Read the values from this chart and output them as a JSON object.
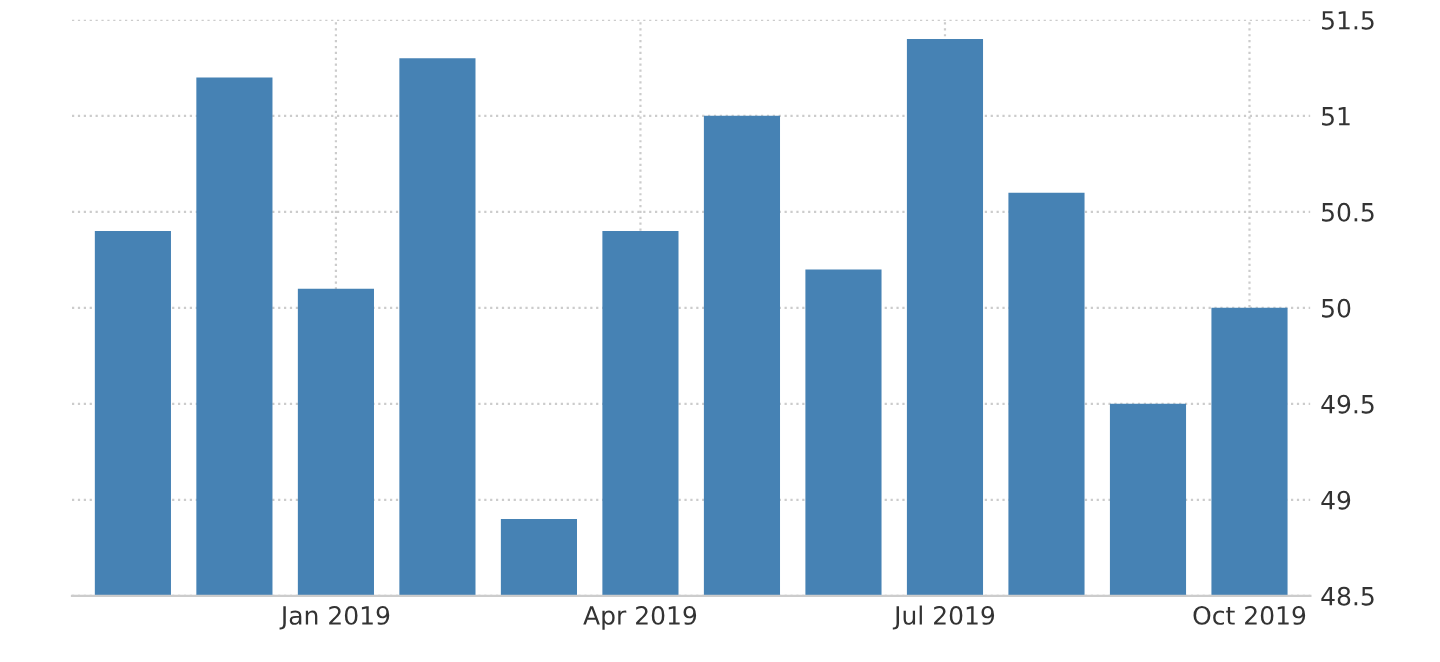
{
  "chart_data": {
    "type": "bar",
    "categories": [
      null,
      null,
      "Jan 2019",
      null,
      null,
      "Apr 2019",
      null,
      null,
      "Jul 2019",
      null,
      null,
      "Oct 2019"
    ],
    "values": [
      50.4,
      51.2,
      50.1,
      51.3,
      48.9,
      50.4,
      51.0,
      50.2,
      51.4,
      50.6,
      49.5,
      50.0
    ],
    "color": "#4682b4",
    "ylim": [
      48.5,
      51.5
    ],
    "yticks": [
      48.5,
      49,
      49.5,
      50,
      50.5,
      51,
      51.5
    ],
    "grid": true
  }
}
